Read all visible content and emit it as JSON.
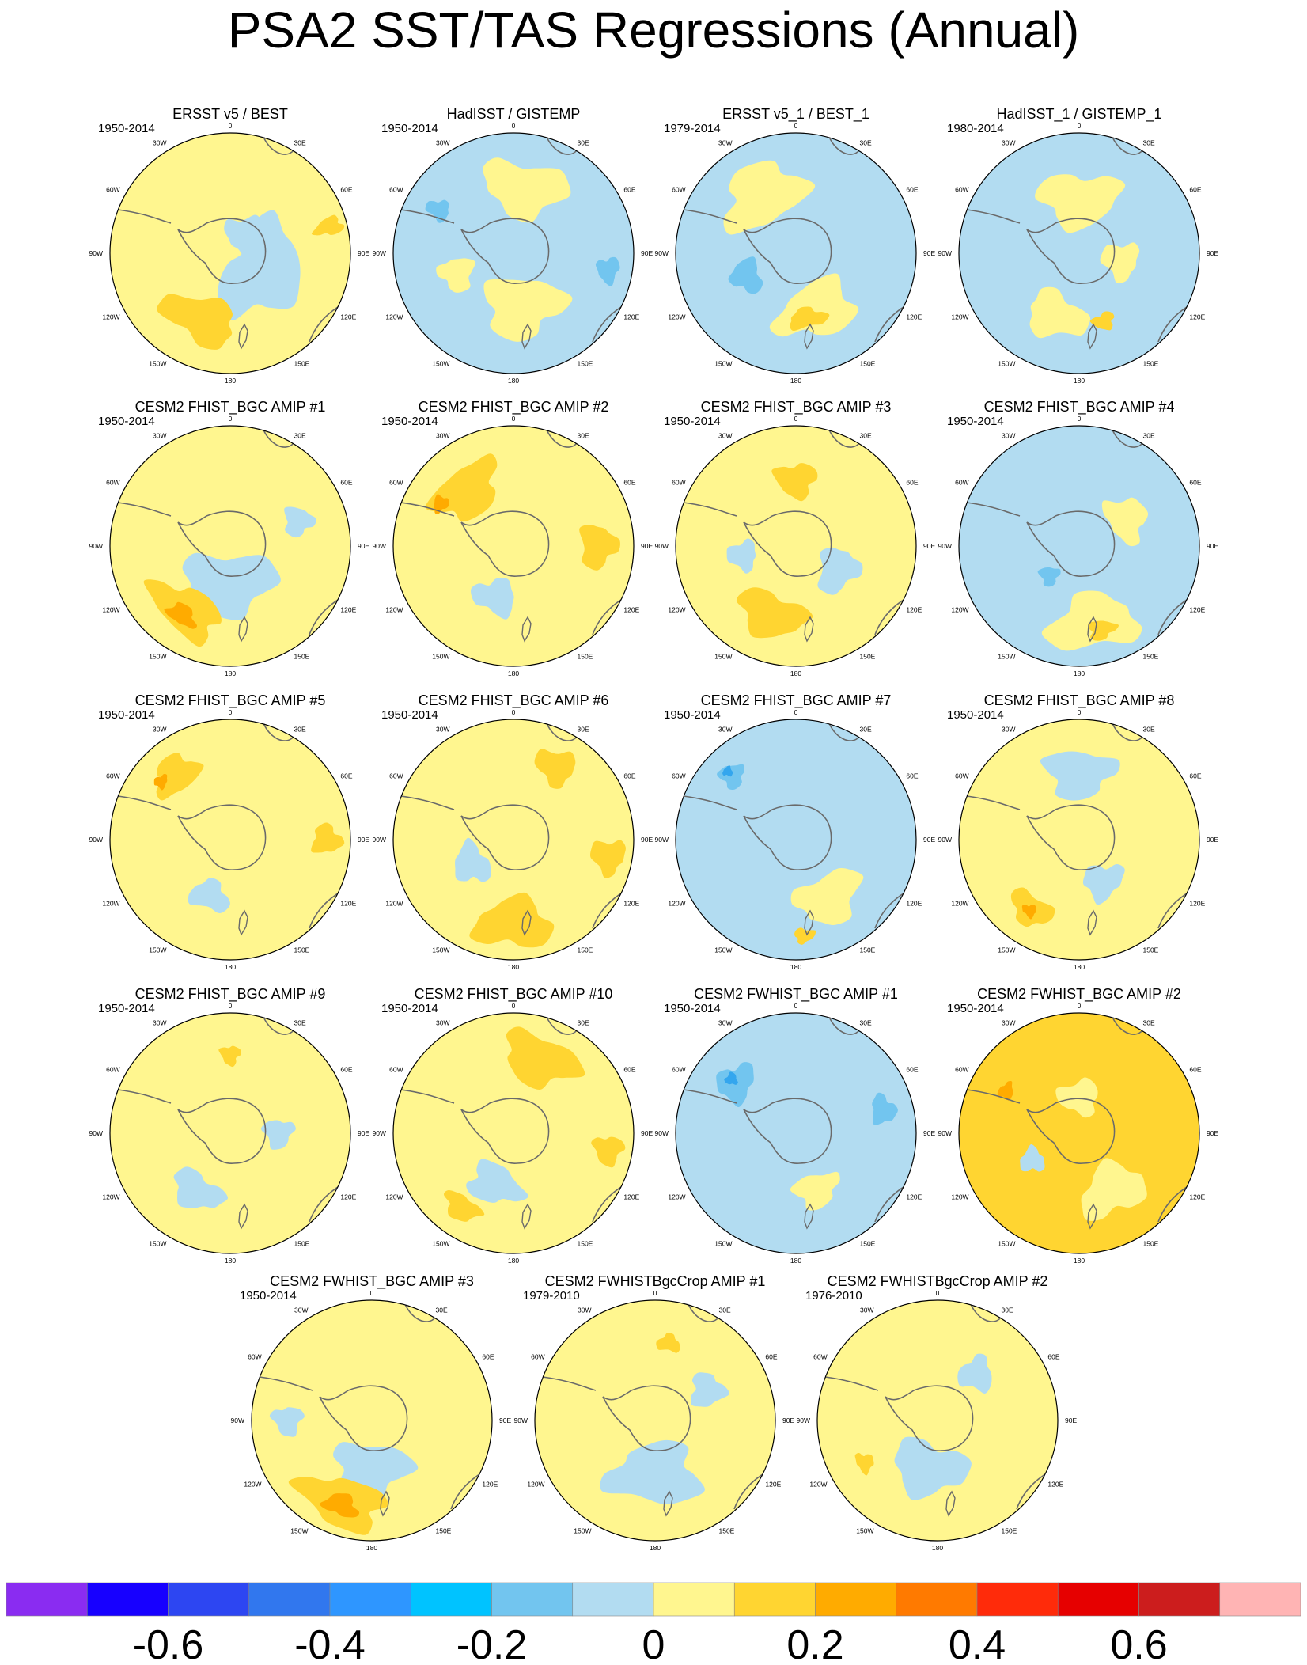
{
  "title": "PSA2 SST/TAS Regressions (Annual)",
  "colors": {
    "blue_light": "#b2dcf1",
    "blue_mid": "#72c5ef",
    "blue_dark": "#33a6ee",
    "yellow": "#fff68f",
    "gold": "#ffd531",
    "orange": "#ffab00",
    "red": "#ff2b0a",
    "land_outline": "#6a6a6a",
    "grid": "#000000"
  },
  "longitude_labels": [
    "0",
    "30E",
    "60E",
    "90E",
    "120E",
    "150E",
    "180",
    "150W",
    "120W",
    "90W",
    "60W",
    "30W"
  ],
  "panels": [
    {
      "title": "ERSST v5 / BEST",
      "period": "1950-2014",
      "background": "yellow",
      "patches": [
        {
          "c": "blue_light",
          "a": 120,
          "d": 0.3,
          "r": 0.3,
          "s": 1.4
        },
        {
          "c": "gold",
          "a": 205,
          "d": 0.6,
          "r": 0.18,
          "s": 1.8
        },
        {
          "c": "gold",
          "a": 75,
          "d": 0.85,
          "r": 0.12,
          "s": 0.6
        },
        {
          "c": "blue_light",
          "a": 40,
          "d": 0.2,
          "r": 0.16,
          "s": 1.0
        }
      ]
    },
    {
      "title": "HadISST / GISTEMP",
      "period": "1950-2014",
      "background": "blue_light",
      "patches": [
        {
          "c": "yellow",
          "a": 10,
          "d": 0.55,
          "r": 0.22,
          "s": 1.6
        },
        {
          "c": "yellow",
          "a": 170,
          "d": 0.45,
          "r": 0.25,
          "s": 1.3
        },
        {
          "c": "blue_mid",
          "a": 300,
          "d": 0.72,
          "r": 0.1,
          "s": 0.8
        },
        {
          "c": "blue_mid",
          "a": 100,
          "d": 0.8,
          "r": 0.09,
          "s": 1.2
        },
        {
          "c": "yellow",
          "a": 250,
          "d": 0.5,
          "r": 0.14,
          "s": 1.0
        }
      ]
    },
    {
      "title": "ERSST v5_1 / BEST_1",
      "period": "1979-2014",
      "background": "blue_light",
      "patches": [
        {
          "c": "yellow",
          "a": 330,
          "d": 0.55,
          "r": 0.25,
          "s": 1.4
        },
        {
          "c": "yellow",
          "a": 160,
          "d": 0.5,
          "r": 0.22,
          "s": 1.5
        },
        {
          "c": "gold",
          "a": 170,
          "d": 0.55,
          "r": 0.08,
          "s": 2.0
        },
        {
          "c": "blue_mid",
          "a": 245,
          "d": 0.45,
          "r": 0.12,
          "s": 1.2
        }
      ]
    },
    {
      "title": "HadISST_1 / GISTEMP_1",
      "period": "1980-2014",
      "background": "blue_light",
      "patches": [
        {
          "c": "yellow",
          "a": 0,
          "d": 0.45,
          "r": 0.22,
          "s": 1.5
        },
        {
          "c": "yellow",
          "a": 200,
          "d": 0.55,
          "r": 0.18,
          "s": 1.4
        },
        {
          "c": "gold",
          "a": 160,
          "d": 0.6,
          "r": 0.07,
          "s": 1.3
        },
        {
          "c": "yellow",
          "a": 100,
          "d": 0.35,
          "r": 0.15,
          "s": 1.0
        }
      ]
    },
    {
      "title": "CESM2 FHIST_BGC AMIP #1",
      "period": "1950-2014",
      "background": "yellow",
      "patches": [
        {
          "c": "blue_light",
          "a": 180,
          "d": 0.3,
          "r": 0.25,
          "s": 1.5
        },
        {
          "c": "gold",
          "a": 215,
          "d": 0.65,
          "r": 0.18,
          "s": 1.8
        },
        {
          "c": "orange",
          "a": 215,
          "d": 0.7,
          "r": 0.08,
          "s": 1.6
        },
        {
          "c": "blue_light",
          "a": 70,
          "d": 0.6,
          "r": 0.12,
          "s": 1.0
        }
      ]
    },
    {
      "title": "CESM2 FHIST_BGC AMIP #2",
      "period": "1950-2014",
      "background": "yellow",
      "patches": [
        {
          "c": "gold",
          "a": 320,
          "d": 0.6,
          "r": 0.2,
          "s": 1.5
        },
        {
          "c": "orange",
          "a": 300,
          "d": 0.7,
          "r": 0.06,
          "s": 1.2
        },
        {
          "c": "gold",
          "a": 90,
          "d": 0.7,
          "r": 0.15,
          "s": 1.2
        },
        {
          "c": "blue_light",
          "a": 200,
          "d": 0.45,
          "r": 0.14,
          "s": 1.3
        }
      ]
    },
    {
      "title": "CESM2 FHIST_BGC AMIP #3",
      "period": "1950-2014",
      "background": "yellow",
      "patches": [
        {
          "c": "gold",
          "a": 200,
          "d": 0.6,
          "r": 0.18,
          "s": 1.6
        },
        {
          "c": "blue_light",
          "a": 120,
          "d": 0.4,
          "r": 0.16,
          "s": 1.2
        },
        {
          "c": "gold",
          "a": 0,
          "d": 0.55,
          "r": 0.14,
          "s": 1.2
        },
        {
          "c": "blue_light",
          "a": 260,
          "d": 0.45,
          "r": 0.12,
          "s": 1.0
        }
      ]
    },
    {
      "title": "CESM2 FHIST_BGC AMIP #4",
      "period": "1950-2014",
      "background": "blue_light",
      "patches": [
        {
          "c": "yellow",
          "a": 170,
          "d": 0.65,
          "r": 0.22,
          "s": 1.7
        },
        {
          "c": "gold",
          "a": 165,
          "d": 0.72,
          "r": 0.08,
          "s": 1.4
        },
        {
          "c": "yellow",
          "a": 60,
          "d": 0.45,
          "r": 0.16,
          "s": 1.2
        },
        {
          "c": "blue_mid",
          "a": 225,
          "d": 0.35,
          "r": 0.08,
          "s": 1.0
        }
      ]
    },
    {
      "title": "CESM2 FHIST_BGC AMIP #5",
      "period": "1950-2014",
      "background": "yellow",
      "patches": [
        {
          "c": "gold",
          "a": 320,
          "d": 0.7,
          "r": 0.15,
          "s": 1.3
        },
        {
          "c": "orange",
          "a": 310,
          "d": 0.75,
          "r": 0.05,
          "s": 1.2
        },
        {
          "c": "blue_light",
          "a": 200,
          "d": 0.5,
          "r": 0.12,
          "s": 1.4
        },
        {
          "c": "gold",
          "a": 90,
          "d": 0.8,
          "r": 0.12,
          "s": 1.0
        }
      ]
    },
    {
      "title": "CESM2 FHIST_BGC AMIP #6",
      "period": "1950-2014",
      "background": "yellow",
      "patches": [
        {
          "c": "gold",
          "a": 180,
          "d": 0.7,
          "r": 0.2,
          "s": 1.6
        },
        {
          "c": "gold",
          "a": 30,
          "d": 0.7,
          "r": 0.14,
          "s": 1.2
        },
        {
          "c": "blue_light",
          "a": 240,
          "d": 0.4,
          "r": 0.14,
          "s": 1.2
        },
        {
          "c": "gold",
          "a": 100,
          "d": 0.8,
          "r": 0.14,
          "s": 1.0
        }
      ]
    },
    {
      "title": "CESM2 FHIST_BGC AMIP #7",
      "period": "1950-2014",
      "background": "blue_light",
      "patches": [
        {
          "c": "yellow",
          "a": 150,
          "d": 0.55,
          "r": 0.2,
          "s": 1.4
        },
        {
          "c": "blue_mid",
          "a": 315,
          "d": 0.75,
          "r": 0.1,
          "s": 1.0
        },
        {
          "c": "blue_dark",
          "a": 315,
          "d": 0.8,
          "r": 0.04,
          "s": 1.0
        },
        {
          "c": "gold",
          "a": 175,
          "d": 0.8,
          "r": 0.06,
          "s": 1.4
        }
      ]
    },
    {
      "title": "CESM2 FHIST_BGC AMIP #8",
      "period": "1950-2014",
      "background": "yellow",
      "patches": [
        {
          "c": "blue_light",
          "a": 0,
          "d": 0.55,
          "r": 0.2,
          "s": 1.4
        },
        {
          "c": "blue_light",
          "a": 150,
          "d": 0.4,
          "r": 0.14,
          "s": 1.2
        },
        {
          "c": "gold",
          "a": 215,
          "d": 0.7,
          "r": 0.12,
          "s": 1.6
        },
        {
          "c": "orange",
          "a": 215,
          "d": 0.72,
          "r": 0.05,
          "s": 1.2
        }
      ]
    },
    {
      "title": "CESM2 FHIST_BGC AMIP #9",
      "period": "1950-2014",
      "background": "yellow",
      "patches": [
        {
          "c": "blue_light",
          "a": 210,
          "d": 0.55,
          "r": 0.14,
          "s": 1.6
        },
        {
          "c": "blue_light",
          "a": 90,
          "d": 0.4,
          "r": 0.12,
          "s": 1.0
        },
        {
          "c": "gold",
          "a": 0,
          "d": 0.65,
          "r": 0.08,
          "s": 1.0
        }
      ]
    },
    {
      "title": "CESM2 FHIST_BGC AMIP #10",
      "period": "1950-2014",
      "background": "yellow",
      "patches": [
        {
          "c": "gold",
          "a": 20,
          "d": 0.65,
          "r": 0.2,
          "s": 1.6
        },
        {
          "c": "blue_light",
          "a": 200,
          "d": 0.45,
          "r": 0.16,
          "s": 1.4
        },
        {
          "c": "gold",
          "a": 215,
          "d": 0.75,
          "r": 0.1,
          "s": 1.6
        },
        {
          "c": "gold",
          "a": 100,
          "d": 0.8,
          "r": 0.12,
          "s": 1.0
        }
      ]
    },
    {
      "title": "CESM2 FWHIST_BGC AMIP #1",
      "period": "1950-2014",
      "background": "blue_light",
      "patches": [
        {
          "c": "yellow",
          "a": 160,
          "d": 0.5,
          "r": 0.14,
          "s": 1.3
        },
        {
          "c": "blue_mid",
          "a": 310,
          "d": 0.65,
          "r": 0.14,
          "s": 1.2
        },
        {
          "c": "blue_dark",
          "a": 310,
          "d": 0.7,
          "r": 0.05,
          "s": 1.0
        },
        {
          "c": "blue_mid",
          "a": 75,
          "d": 0.75,
          "r": 0.1,
          "s": 1.2
        }
      ]
    },
    {
      "title": "CESM2 FWHIST_BGC AMIP #2",
      "period": "1950-2014",
      "background": "gold",
      "patches": [
        {
          "c": "yellow",
          "a": 150,
          "d": 0.55,
          "r": 0.2,
          "s": 1.4
        },
        {
          "c": "yellow",
          "a": 0,
          "d": 0.3,
          "r": 0.14,
          "s": 1.2
        },
        {
          "c": "blue_light",
          "a": 240,
          "d": 0.45,
          "r": 0.1,
          "s": 1.0
        },
        {
          "c": "orange",
          "a": 300,
          "d": 0.7,
          "r": 0.06,
          "s": 1.2
        }
      ]
    },
    {
      "title": "CESM2 FWHIST_BGC AMIP #3",
      "period": "1950-2014",
      "background": "yellow",
      "patches": [
        {
          "c": "blue_light",
          "a": 180,
          "d": 0.4,
          "r": 0.22,
          "s": 1.4
        },
        {
          "c": "gold",
          "a": 200,
          "d": 0.72,
          "r": 0.2,
          "s": 1.8
        },
        {
          "c": "orange",
          "a": 200,
          "d": 0.75,
          "r": 0.09,
          "s": 1.6
        },
        {
          "c": "blue_light",
          "a": 270,
          "d": 0.7,
          "r": 0.12,
          "s": 1.0
        }
      ]
    },
    {
      "title": "CESM2 FWHISTBgcCrop AMIP #1",
      "period": "1979-2010",
      "background": "yellow",
      "patches": [
        {
          "c": "blue_light",
          "a": 180,
          "d": 0.45,
          "r": 0.25,
          "s": 1.5
        },
        {
          "c": "blue_light",
          "a": 60,
          "d": 0.5,
          "r": 0.14,
          "s": 1.0
        },
        {
          "c": "gold",
          "a": 10,
          "d": 0.65,
          "r": 0.07,
          "s": 1.4
        }
      ]
    },
    {
      "title": "CESM2 FWHISTBgcCrop AMIP #2",
      "period": "1976-2010",
      "background": "yellow",
      "patches": [
        {
          "c": "blue_light",
          "a": 190,
          "d": 0.4,
          "r": 0.22,
          "s": 1.4
        },
        {
          "c": "blue_light",
          "a": 40,
          "d": 0.5,
          "r": 0.14,
          "s": 1.0
        },
        {
          "c": "gold",
          "a": 240,
          "d": 0.7,
          "r": 0.07,
          "s": 1.2
        }
      ]
    }
  ],
  "colorbar": {
    "colors": [
      "#8a2cf1",
      "#1700ff",
      "#2d46f2",
      "#3177ee",
      "#2e96ff",
      "#00c3ff",
      "#72c5ef",
      "#b2dcf1",
      "#fff68f",
      "#ffd531",
      "#ffab00",
      "#ff7a00",
      "#ff2b0a",
      "#e60000",
      "#cc1d1d",
      "#ffb4b4"
    ],
    "labels": [
      "-0.6",
      "-0.4",
      "-0.2",
      "0",
      "0.2",
      "0.4",
      "0.6"
    ]
  }
}
